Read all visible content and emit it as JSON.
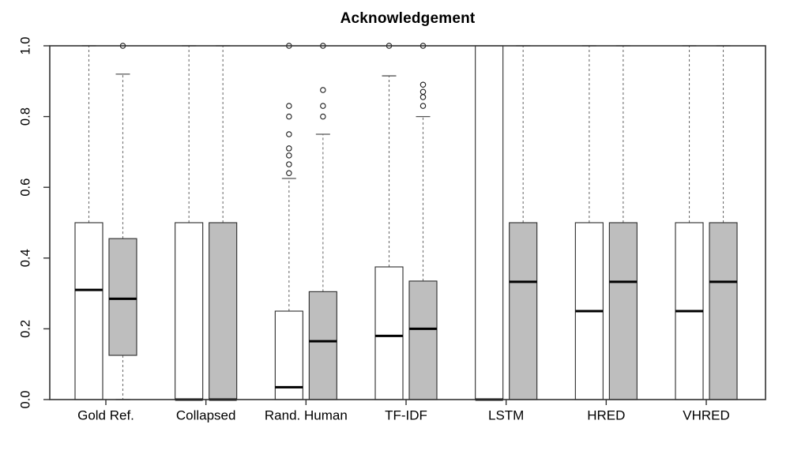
{
  "chart_data": {
    "type": "boxplot",
    "title": "Acknowledgement",
    "xlabel": "",
    "ylabel": "",
    "ylim": [
      0.0,
      1.0
    ],
    "grid": false,
    "legend": "none",
    "y_ticks": {
      "values": [
        0.0,
        0.2,
        0.4,
        0.6,
        0.8,
        1.0
      ],
      "labels": [
        "0.0",
        "0.2",
        "0.4",
        "0.6",
        "0.8",
        "1.0"
      ]
    },
    "categories": [
      "Gold Ref.",
      "Collapsed",
      "Rand. Human",
      "TF-IDF",
      "LSTM",
      "HRED",
      "VHRED"
    ],
    "colors": {
      "white_box_fill": "#ffffff",
      "gray_box_fill": "#bebebe",
      "box_border": "#2b2b2b",
      "median": "#000000",
      "whisker": "#707070",
      "whisker_cap": "#555555",
      "outlier_stroke": "#1a1a1a",
      "frame": "#333333",
      "text": "#000000"
    },
    "series": [
      {
        "name": "white",
        "fill": "#ffffff",
        "boxes": [
          {
            "category": "Gold Ref.",
            "q1": 0.0,
            "median": 0.31,
            "q3": 0.5,
            "whisker_low": null,
            "whisker_high": 1.0,
            "outliers": []
          },
          {
            "category": "Collapsed",
            "q1": 0.0,
            "median": 0.0,
            "q3": 0.5,
            "whisker_low": null,
            "whisker_high": 1.0,
            "outliers": []
          },
          {
            "category": "Rand. Human",
            "q1": 0.0,
            "median": 0.035,
            "q3": 0.25,
            "whisker_low": null,
            "whisker_high": 0.625,
            "outliers": [
              0.64,
              0.665,
              0.69,
              0.71,
              0.75,
              0.8,
              0.83,
              1.0
            ]
          },
          {
            "category": "TF-IDF",
            "q1": 0.0,
            "median": 0.18,
            "q3": 0.375,
            "whisker_low": null,
            "whisker_high": 0.915,
            "outliers": [
              1.0
            ]
          },
          {
            "category": "LSTM",
            "q1": 0.0,
            "median": 0.0,
            "q3": 1.0,
            "whisker_low": null,
            "whisker_high": null,
            "outliers": []
          },
          {
            "category": "HRED",
            "q1": 0.0,
            "median": 0.25,
            "q3": 0.5,
            "whisker_low": null,
            "whisker_high": 1.0,
            "outliers": []
          },
          {
            "category": "VHRED",
            "q1": 0.0,
            "median": 0.25,
            "q3": 0.5,
            "whisker_low": null,
            "whisker_high": 1.0,
            "outliers": []
          }
        ]
      },
      {
        "name": "gray",
        "fill": "#bebebe",
        "boxes": [
          {
            "category": "Gold Ref.",
            "q1": 0.125,
            "median": 0.285,
            "q3": 0.455,
            "whisker_low": 0.0,
            "whisker_high": 0.92,
            "outliers": [
              1.0
            ]
          },
          {
            "category": "Collapsed",
            "q1": 0.0,
            "median": 0.0,
            "q3": 0.5,
            "whisker_low": null,
            "whisker_high": 1.0,
            "outliers": []
          },
          {
            "category": "Rand. Human",
            "q1": 0.0,
            "median": 0.165,
            "q3": 0.305,
            "whisker_low": null,
            "whisker_high": 0.75,
            "outliers": [
              0.8,
              0.83,
              0.875,
              1.0
            ]
          },
          {
            "category": "TF-IDF",
            "q1": 0.0,
            "median": 0.2,
            "q3": 0.335,
            "whisker_low": null,
            "whisker_high": 0.8,
            "outliers": [
              0.83,
              0.855,
              0.87,
              0.89,
              1.0
            ]
          },
          {
            "category": "LSTM",
            "q1": 0.0,
            "median": 0.333,
            "q3": 0.5,
            "whisker_low": null,
            "whisker_high": 1.0,
            "outliers": []
          },
          {
            "category": "HRED",
            "q1": 0.0,
            "median": 0.333,
            "q3": 0.5,
            "whisker_low": null,
            "whisker_high": 1.0,
            "outliers": []
          },
          {
            "category": "VHRED",
            "q1": 0.0,
            "median": 0.333,
            "q3": 0.5,
            "whisker_low": null,
            "whisker_high": 1.0,
            "outliers": []
          }
        ]
      }
    ]
  }
}
